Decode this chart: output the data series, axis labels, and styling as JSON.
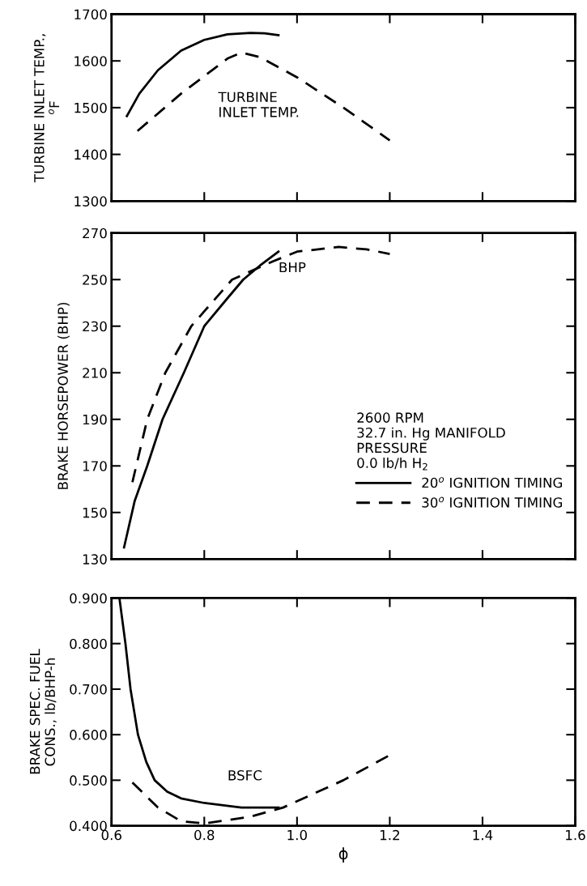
{
  "chart_data": [
    {
      "type": "line",
      "ylabel": "TURBINE INLET TEMP.,\n$^{o}$F",
      "xlim": [
        0.6,
        1.6
      ],
      "xticks": [
        0.6,
        0.8,
        1.0,
        1.2,
        1.4,
        1.6
      ],
      "ylim": [
        1300,
        1700
      ],
      "yticks": [
        1300,
        1400,
        1500,
        1600,
        1700
      ],
      "tick_labels": "y",
      "grid": false,
      "legend": false,
      "annotations": [
        "TURBINE\nINLET TEMP."
      ],
      "series": [
        {
          "color": "#000000",
          "line_style": "solid",
          "x": [
            0.633,
            0.66,
            0.7,
            0.75,
            0.8,
            0.85,
            0.9,
            0.93,
            0.96
          ],
          "values": [
            1482,
            1530,
            1580,
            1622,
            1645,
            1657,
            1660,
            1659,
            1655
          ]
        },
        {
          "color": "#000000",
          "line_style": "dashed",
          "x": [
            0.656,
            0.75,
            0.85,
            0.88,
            0.92,
            1.0,
            1.1,
            1.2
          ],
          "values": [
            1450,
            1530,
            1605,
            1618,
            1608,
            1565,
            1500,
            1430
          ]
        }
      ]
    },
    {
      "type": "line",
      "ylabel": "BRAKE HORSEPOWER (BHP)",
      "xlim": [
        0.6,
        1.6
      ],
      "xticks": [
        0.6,
        0.8,
        1.0,
        1.2,
        1.4,
        1.6
      ],
      "ylim": [
        130,
        270
      ],
      "yticks": [
        130,
        150,
        170,
        190,
        210,
        230,
        250,
        270
      ],
      "tick_labels": "y",
      "grid": false,
      "legend": "right",
      "legend_title": "2600 RPM\n32.7 in. Hg MANIFOLD\nPRESSURE\n0.0 lb/h H$_{2}$",
      "annotations": [
        "BHP"
      ],
      "series": [
        {
          "name": "20$^{o}$ IGNITION TIMING",
          "color": "#000000",
          "line_style": "solid",
          "x": [
            0.627,
            0.65,
            0.677,
            0.71,
            0.756,
            0.8,
            0.85,
            0.884,
            0.92,
            0.96
          ],
          "values": [
            135,
            155,
            170,
            190,
            210,
            230,
            242,
            250,
            256,
            262
          ]
        },
        {
          "name": "30$^{o}$ IGNITION TIMING",
          "color": "#000000",
          "line_style": "dashed",
          "x": [
            0.645,
            0.677,
            0.716,
            0.772,
            0.86,
            0.95,
            1.0,
            1.09,
            1.15,
            1.2
          ],
          "values": [
            163,
            190,
            210,
            230,
            250,
            258,
            262,
            264,
            263,
            261
          ]
        }
      ]
    },
    {
      "type": "line",
      "xlabel": "ϕ",
      "ylabel": "BRAKE SPEC. FUEL\nCONS., lb/BHP-h",
      "xlim": [
        0.6,
        1.6
      ],
      "xticks": [
        0.6,
        0.8,
        {
          "value": 1.0,
          "label": "1.0"
        },
        1.2,
        1.4,
        1.6
      ],
      "ylim": [
        0.4,
        0.9
      ],
      "yticks": [
        {
          "value": 0.4,
          "label": "0.400"
        },
        {
          "value": 0.5,
          "label": "0.500"
        },
        {
          "value": 0.6,
          "label": "0.600"
        },
        {
          "value": 0.7,
          "label": "0.700"
        },
        {
          "value": 0.8,
          "label": "0.800"
        },
        {
          "value": 0.9,
          "label": "0.900"
        }
      ],
      "grid": false,
      "legend": false,
      "annotations": [
        "BSFC"
      ],
      "series": [
        {
          "color": "#000000",
          "line_style": "solid",
          "x": [
            0.617,
            0.63,
            0.641,
            0.657,
            0.675,
            0.693,
            0.72,
            0.75,
            0.8,
            0.88,
            0.96
          ],
          "values": [
            0.9,
            0.8,
            0.7,
            0.6,
            0.54,
            0.5,
            0.475,
            0.46,
            0.45,
            0.44,
            0.44
          ]
        },
        {
          "color": "#000000",
          "line_style": "dashed",
          "x": [
            0.645,
            0.7,
            0.75,
            0.8,
            0.9,
            0.97,
            1.1,
            1.2
          ],
          "values": [
            0.495,
            0.44,
            0.41,
            0.405,
            0.42,
            0.44,
            0.5,
            0.555
          ]
        }
      ]
    }
  ]
}
